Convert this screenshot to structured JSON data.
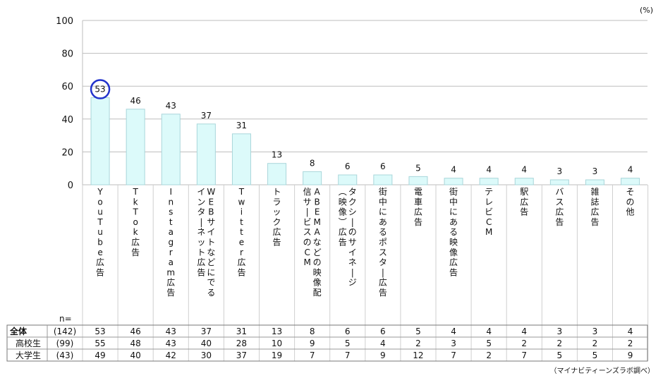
{
  "unit_label": "(%)",
  "source_note": "（マイナビティーンズラボ調べ）",
  "n_label": "n=",
  "highlight_color": "#2233cc",
  "bar_fill": "#dcfafa",
  "bar_stroke": "#a9d6da",
  "chart_data": {
    "type": "bar",
    "categories": [
      "YouTube広告",
      "TkTok広告",
      "Instagram広告",
      "WEBサイトなどにでるインターネット広告",
      "Twitter広告",
      "トラック広告",
      "ABEMAなどの映像配信サービスのCM",
      "タクシーのサイネージ（映像）広告",
      "街中にあるポスター広告",
      "電車広告",
      "街中にある映像広告",
      "テレビCM",
      "駅広告",
      "バス広告",
      "雑誌広告",
      "その他"
    ],
    "category_columns": [
      [
        "YouTube広告"
      ],
      [
        "TkTok広告"
      ],
      [
        "Instagram広告"
      ],
      [
        "WEBサイトなどにでる",
        "インターネット広告"
      ],
      [
        "Twitter広告"
      ],
      [
        "トラック広告"
      ],
      [
        "ABEMAなどの映像配",
        "信サービスのCM"
      ],
      [
        "タクシーのサイネージ",
        "（映像）広告"
      ],
      [
        "街中にあるポスター広告"
      ],
      [
        "電車広告"
      ],
      [
        "街中にある映像広告"
      ],
      [
        "テレビCM"
      ],
      [
        "駅広告"
      ],
      [
        "バス広告"
      ],
      [
        "雑誌広告"
      ],
      [
        "その他"
      ]
    ],
    "values": [
      53,
      46,
      43,
      37,
      31,
      13,
      8,
      6,
      6,
      5,
      4,
      4,
      4,
      3,
      3,
      4
    ],
    "highlight_index": 0,
    "yticks": [
      0,
      20,
      40,
      60,
      80,
      100
    ],
    "ylim": [
      0,
      100
    ],
    "grid": true,
    "table": [
      {
        "group": "全体",
        "n": "(142)",
        "values": [
          53,
          46,
          43,
          37,
          31,
          13,
          8,
          6,
          6,
          5,
          4,
          4,
          4,
          3,
          3,
          4
        ]
      },
      {
        "group": "高校生",
        "n": "(99)",
        "values": [
          55,
          48,
          43,
          40,
          28,
          10,
          9,
          5,
          4,
          2,
          3,
          5,
          2,
          2,
          2,
          2
        ]
      },
      {
        "group": "大学生",
        "n": "(43)",
        "values": [
          49,
          40,
          42,
          30,
          37,
          19,
          7,
          7,
          9,
          12,
          7,
          2,
          7,
          5,
          5,
          9
        ]
      }
    ]
  }
}
